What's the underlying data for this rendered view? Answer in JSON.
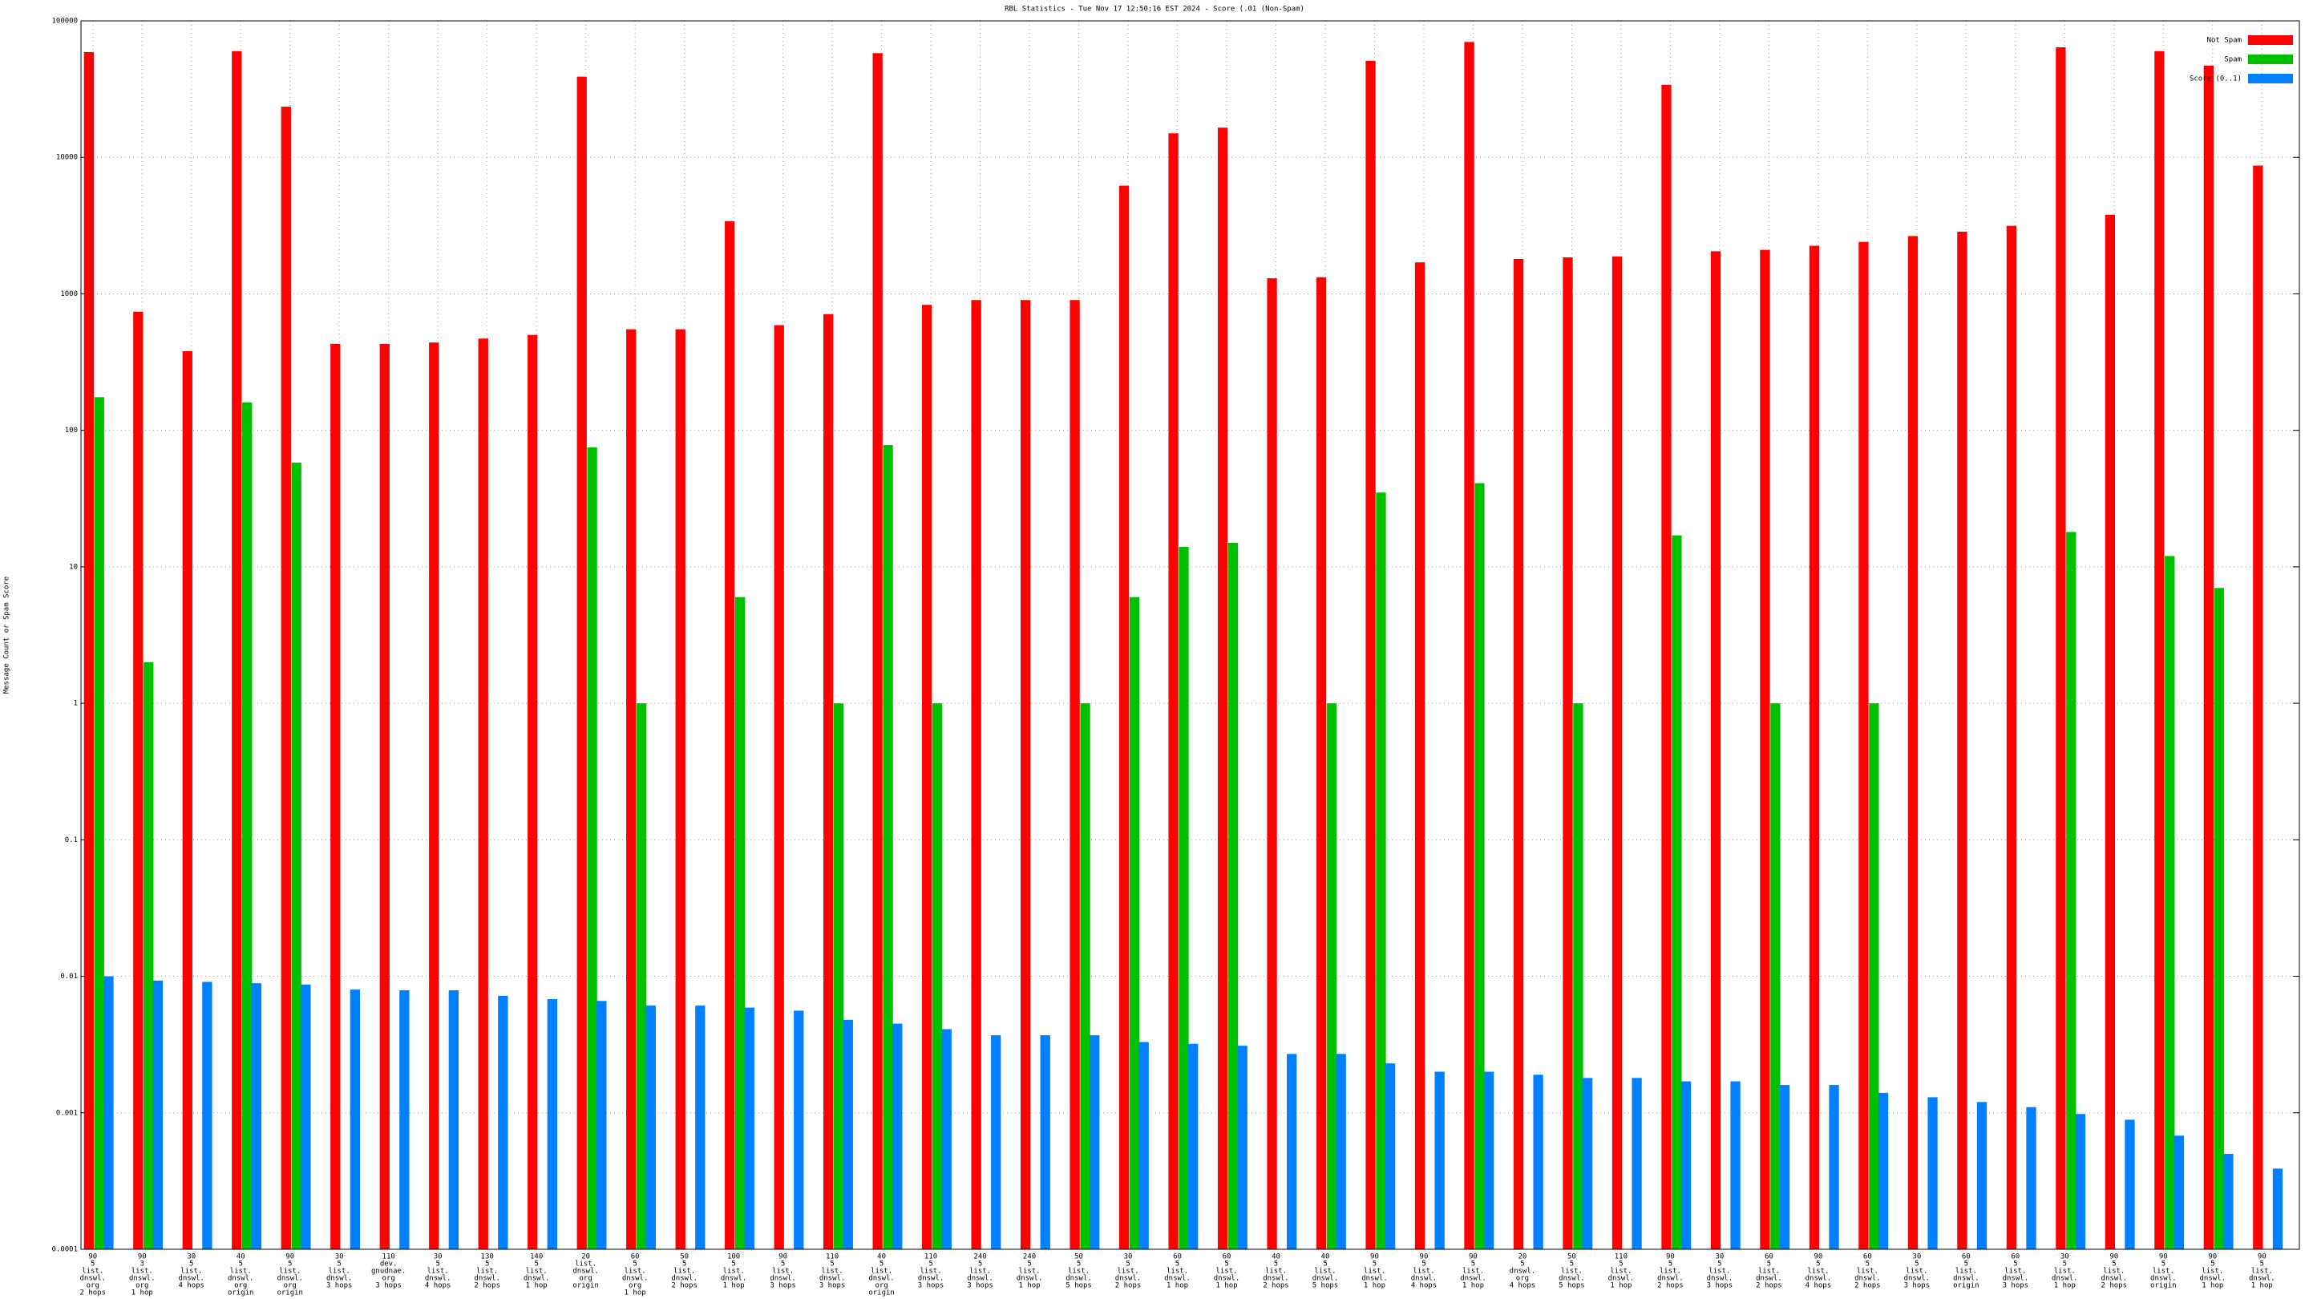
{
  "chart_data": {
    "type": "bar",
    "title": "RBL Statistics - Tue Nov 17 12:50:16 EST 2024 - Score (.01 (Non-Spam)",
    "y_label": "Message Count or Spam Score",
    "log_scale": true,
    "grid": true,
    "legend_position": "top-right",
    "ylim": [
      0.0001,
      100000
    ],
    "yticks": [
      0.0001,
      0.001,
      0.01,
      0.1,
      1,
      10,
      100,
      1000,
      10000,
      100000
    ],
    "categories": [
      [
        "90",
        "5",
        "list.",
        "dnswl.",
        "org",
        "2 hops"
      ],
      [
        "90",
        "3",
        "list.",
        "dnswl.",
        "org",
        "1 hop"
      ],
      [
        "30",
        "5",
        "list.",
        "dnswl.",
        "4 hops"
      ],
      [
        "40",
        "5",
        "list.",
        "dnswl.",
        "org",
        "origin"
      ],
      [
        "90",
        "5",
        "list.",
        "dnswl.",
        "org",
        "origin"
      ],
      [
        "30",
        "5",
        "list.",
        "dnswl.",
        "3 hops"
      ],
      [
        "110",
        "dev.",
        "gnudnae.",
        "org",
        "3 hops"
      ],
      [
        "30",
        "5",
        "list.",
        "dnswl.",
        "4 hops"
      ],
      [
        "130",
        "5",
        "list.",
        "dnswl.",
        "2 hops"
      ],
      [
        "140",
        "5",
        "list.",
        "dnswl.",
        "1 hop"
      ],
      [
        "20",
        "list.",
        "dnswl.",
        "org",
        "origin"
      ],
      [
        "60",
        "5",
        "list.",
        "dnswl.",
        "org",
        "1 hop"
      ],
      [
        "50",
        "5",
        "list.",
        "dnswl.",
        "2 hops"
      ],
      [
        "100",
        "5",
        "list.",
        "dnswl.",
        "1 hop"
      ],
      [
        "90",
        "5",
        "list.",
        "dnswl.",
        "3 hops"
      ],
      [
        "110",
        "5",
        "list.",
        "dnswl.",
        "3 hops"
      ],
      [
        "40",
        "5",
        "list.",
        "dnswl.",
        "org",
        "origin"
      ],
      [
        "110",
        "5",
        "list.",
        "dnswl.",
        "3 hops"
      ],
      [
        "240",
        "5",
        "list.",
        "dnswl.",
        "3 hops"
      ],
      [
        "240",
        "5",
        "list.",
        "dnswl.",
        "1 hop"
      ],
      [
        "50",
        "5",
        "list.",
        "dnswl.",
        "5 hops"
      ],
      [
        "30",
        "5",
        "list.",
        "dnswl.",
        "2 hops"
      ],
      [
        "60",
        "5",
        "list.",
        "dnswl.",
        "1 hop"
      ],
      [
        "60",
        "5",
        "list.",
        "dnswl.",
        "1 hop"
      ],
      [
        "40",
        "5",
        "list.",
        "dnswl.",
        "2 hops"
      ],
      [
        "40",
        "5",
        "list.",
        "dnswl.",
        "5 hops"
      ],
      [
        "90",
        "5",
        "list.",
        "dnswl.",
        "1 hop"
      ],
      [
        "90",
        "5",
        "list.",
        "dnswl.",
        "4 hops"
      ],
      [
        "90",
        "5",
        "list.",
        "dnswl.",
        "1 hop"
      ],
      [
        "20",
        "5",
        "dnswl.",
        "org",
        "4 hops"
      ],
      [
        "50",
        "5",
        "list.",
        "dnswl.",
        "5 hops"
      ],
      [
        "110",
        "5",
        "list.",
        "dnswl.",
        "1 hop"
      ],
      [
        "90",
        "5",
        "list.",
        "dnswl.",
        "2 hops"
      ],
      [
        "30",
        "5",
        "list.",
        "dnswl.",
        "3 hops"
      ],
      [
        "60",
        "5",
        "list.",
        "dnswl.",
        "2 hops"
      ],
      [
        "90",
        "5",
        "list.",
        "dnswl.",
        "4 hops"
      ],
      [
        "60",
        "5",
        "list.",
        "dnswl.",
        "2 hops"
      ],
      [
        "30",
        "5",
        "list.",
        "dnswl.",
        "3 hops"
      ],
      [
        "60",
        "5",
        "list.",
        "dnswl.",
        "origin"
      ],
      [
        "60",
        "5",
        "list.",
        "dnswl.",
        "3 hops"
      ],
      [
        "30",
        "5",
        "list.",
        "dnswl.",
        "1 hop"
      ],
      [
        "90",
        "5",
        "list.",
        "dnswl.",
        "2 hops"
      ],
      [
        "90",
        "5",
        "list.",
        "dnswl.",
        "origin"
      ],
      [
        "90",
        "5",
        "list.",
        "dnswl.",
        "1 hop"
      ],
      [
        "90",
        "5",
        "list.",
        "dnswl.",
        "1 hop"
      ]
    ],
    "series": [
      {
        "name": "Not Spam",
        "color": "#ff0000",
        "values": [
          59000,
          740,
          380,
          60000,
          23500,
          430,
          430,
          440,
          470,
          500,
          39000,
          550,
          550,
          3400,
          590,
          710,
          58000,
          830,
          900,
          900,
          900,
          6200,
          15000,
          16500,
          1300,
          1320,
          51000,
          1700,
          70000,
          1800,
          1850,
          1880,
          34000,
          2050,
          2100,
          2250,
          2400,
          2650,
          2850,
          3150,
          64000,
          3800,
          60000,
          47000,
          8700
        ]
      },
      {
        "name": "Spam",
        "color": "#00c000",
        "values": [
          175,
          2,
          null,
          160,
          58,
          null,
          null,
          null,
          null,
          null,
          75,
          1,
          null,
          6,
          null,
          1,
          78,
          1,
          null,
          null,
          1,
          6,
          14,
          15,
          null,
          1,
          35,
          null,
          41,
          null,
          1,
          null,
          17,
          null,
          1,
          null,
          1,
          null,
          null,
          null,
          18,
          null,
          12,
          7,
          null
        ]
      },
      {
        "name": "Score (0..1)",
        "color": "#0080ff",
        "values": [
          0.01,
          0.0093,
          0.0091,
          0.0089,
          0.0087,
          0.008,
          0.0079,
          0.0079,
          0.0072,
          0.0068,
          0.0066,
          0.0061,
          0.0061,
          0.0059,
          0.0056,
          0.0048,
          0.0045,
          0.0041,
          0.0037,
          0.0037,
          0.0037,
          0.0033,
          0.0032,
          0.0031,
          0.0027,
          0.0027,
          0.0023,
          0.002,
          0.002,
          0.0019,
          0.0018,
          0.0018,
          0.0017,
          0.0017,
          0.0016,
          0.0016,
          0.0014,
          0.0013,
          0.0012,
          0.0011,
          0.00098,
          0.00089,
          0.00068,
          0.0005,
          0.00039
        ]
      }
    ]
  }
}
